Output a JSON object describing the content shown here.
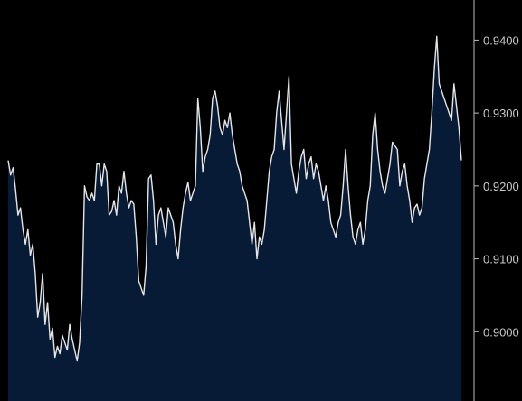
{
  "chart_data": {
    "type": "area",
    "title": "",
    "xlabel": "",
    "ylabel": "",
    "ylim": [
      0.8905,
      0.9455
    ],
    "y_ticks": [
      0.9,
      0.91,
      0.92,
      0.93,
      0.94
    ],
    "y_tick_labels": [
      "0.9000",
      "0.9100",
      "0.9200",
      "0.9300",
      "0.9400"
    ],
    "y_axis_side": "right",
    "grid": false,
    "legend": "none",
    "colors": {
      "background": "#000000",
      "area_fill": "#071b36",
      "line": "#e6e6e6",
      "axis": "#bdbdbd",
      "tick_text": "#c9c9c9"
    },
    "series": [
      {
        "values": [
          0.9235,
          0.9215,
          0.9225,
          0.9195,
          0.916,
          0.917,
          0.914,
          0.912,
          0.914,
          0.9105,
          0.912,
          0.908,
          0.902,
          0.904,
          0.908,
          0.901,
          0.904,
          0.899,
          0.9005,
          0.8965,
          0.898,
          0.897,
          0.8995,
          0.8985,
          0.8975,
          0.901,
          0.899,
          0.8975,
          0.896,
          0.8985,
          0.905,
          0.92,
          0.9185,
          0.918,
          0.919,
          0.918,
          0.923,
          0.923,
          0.92,
          0.923,
          0.922,
          0.916,
          0.9165,
          0.918,
          0.916,
          0.92,
          0.919,
          0.922,
          0.919,
          0.917,
          0.918,
          0.9175,
          0.913,
          0.907,
          0.906,
          0.905,
          0.909,
          0.921,
          0.9215,
          0.918,
          0.912,
          0.916,
          0.917,
          0.915,
          0.913,
          0.917,
          0.916,
          0.915,
          0.912,
          0.91,
          0.914,
          0.917,
          0.919,
          0.9205,
          0.918,
          0.919,
          0.92,
          0.932,
          0.928,
          0.922,
          0.924,
          0.925,
          0.927,
          0.932,
          0.933,
          0.931,
          0.928,
          0.927,
          0.929,
          0.928,
          0.93,
          0.927,
          0.925,
          0.923,
          0.922,
          0.92,
          0.919,
          0.918,
          0.915,
          0.912,
          0.915,
          0.91,
          0.913,
          0.912,
          0.914,
          0.918,
          0.922,
          0.924,
          0.925,
          0.93,
          0.933,
          0.929,
          0.925,
          0.93,
          0.935,
          0.923,
          0.921,
          0.919,
          0.922,
          0.924,
          0.925,
          0.921,
          0.923,
          0.924,
          0.921,
          0.923,
          0.922,
          0.92,
          0.918,
          0.92,
          0.918,
          0.915,
          0.914,
          0.913,
          0.915,
          0.916,
          0.92,
          0.925,
          0.92,
          0.916,
          0.913,
          0.912,
          0.914,
          0.915,
          0.912,
          0.914,
          0.918,
          0.92,
          0.927,
          0.93,
          0.925,
          0.922,
          0.92,
          0.919,
          0.921,
          0.923,
          0.926,
          0.9255,
          0.925,
          0.92,
          0.922,
          0.923,
          0.92,
          0.918,
          0.915,
          0.917,
          0.9175,
          0.916,
          0.917,
          0.921,
          0.923,
          0.925,
          0.93,
          0.936,
          0.9405,
          0.934,
          0.933,
          0.932,
          0.931,
          0.93,
          0.929,
          0.934,
          0.931,
          0.928,
          0.9235
        ]
      }
    ]
  }
}
